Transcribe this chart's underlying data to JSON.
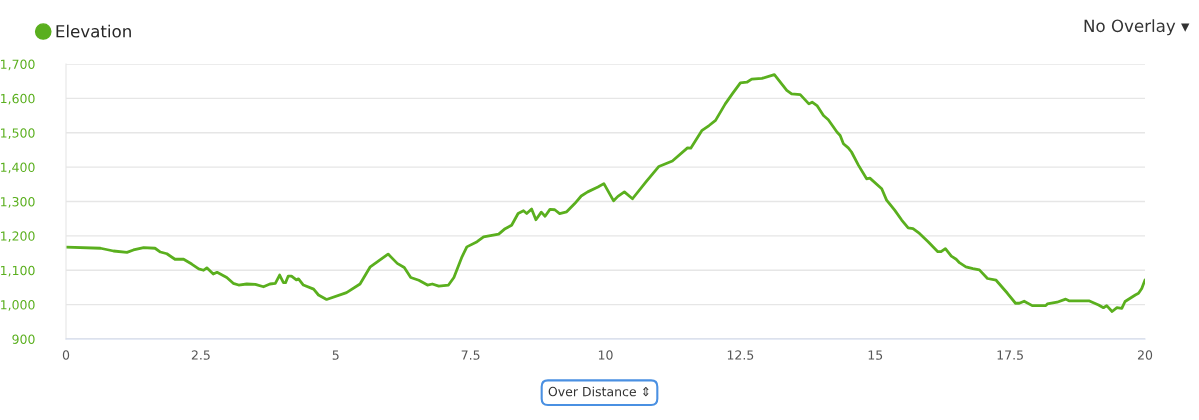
{
  "chart_data": {
    "type": "line",
    "x": [
      0,
      0.64,
      0.88,
      1.13,
      1.25,
      1.44,
      1.65,
      1.75,
      1.87,
      2.02,
      2.18,
      2.33,
      2.46,
      2.55,
      2.61,
      2.73,
      2.8,
      2.98,
      3.1,
      3.2,
      3.35,
      3.51,
      3.66,
      3.78,
      3.88,
      3.96,
      4.03,
      4.07,
      4.12,
      4.18,
      4.27,
      4.31,
      4.4,
      4.59,
      4.68,
      4.83,
      5.2,
      5.45,
      5.64,
      5.97,
      6.14,
      6.27,
      6.39,
      6.54,
      6.7,
      6.79,
      6.91,
      7.09,
      7.19,
      7.34,
      7.43,
      7.62,
      7.74,
      8.02,
      8.14,
      8.26,
      8.38,
      8.48,
      8.54,
      8.63,
      8.71,
      8.81,
      8.88,
      8.97,
      9.06,
      9.15,
      9.28,
      9.43,
      9.55,
      9.67,
      9.86,
      9.97,
      10.15,
      10.23,
      10.35,
      10.5,
      10.75,
      10.99,
      11.24,
      11.52,
      11.58,
      11.79,
      11.92,
      12.04,
      12.22,
      12.35,
      12.5,
      12.62,
      12.71,
      12.9,
      13.13,
      13.36,
      13.45,
      13.61,
      13.77,
      13.83,
      13.92,
      14.04,
      14.13,
      14.29,
      14.35,
      14.41,
      14.5,
      14.56,
      14.69,
      14.84,
      14.9,
      15.12,
      15.21,
      15.36,
      15.49,
      15.61,
      15.7,
      15.82,
      15.98,
      16.16,
      16.22,
      16.3,
      16.41,
      16.5,
      16.56,
      16.68,
      16.81,
      16.93,
      17.08,
      17.24,
      17.45,
      17.6,
      17.67,
      17.76,
      17.91,
      18.16,
      18.19,
      18.37,
      18.53,
      18.59,
      18.96,
      19.14,
      19.23,
      19.29,
      19.39,
      19.48,
      19.57,
      19.63,
      19.82,
      19.88,
      19.94,
      20
    ],
    "series": [
      {
        "name": "Elevation",
        "color": "#5aaf1e",
        "values": [
          1167,
          1164,
          1156,
          1152,
          1159,
          1166,
          1164,
          1153,
          1148,
          1132,
          1132,
          1118,
          1104,
          1100,
          1107,
          1089,
          1094,
          1079,
          1062,
          1057,
          1060,
          1059,
          1052,
          1060,
          1062,
          1086,
          1064,
          1064,
          1083,
          1083,
          1072,
          1075,
          1057,
          1045,
          1028,
          1015,
          1035,
          1060,
          1110,
          1147,
          1120,
          1108,
          1079,
          1071,
          1057,
          1060,
          1054,
          1057,
          1079,
          1139,
          1168,
          1183,
          1197,
          1205,
          1221,
          1231,
          1265,
          1273,
          1265,
          1278,
          1247,
          1269,
          1257,
          1277,
          1276,
          1265,
          1270,
          1294,
          1316,
          1328,
          1342,
          1352,
          1302,
          1315,
          1328,
          1308,
          1357,
          1402,
          1418,
          1456,
          1455,
          1507,
          1521,
          1536,
          1584,
          1613,
          1645,
          1647,
          1656,
          1658,
          1669,
          1623,
          1613,
          1611,
          1584,
          1589,
          1579,
          1550,
          1538,
          1502,
          1492,
          1468,
          1456,
          1444,
          1405,
          1366,
          1368,
          1337,
          1304,
          1275,
          1246,
          1223,
          1221,
          1207,
          1183,
          1154,
          1154,
          1163,
          1141,
          1132,
          1122,
          1110,
          1105,
          1101,
          1076,
          1071,
          1033,
          1004,
          1004,
          1010,
          997,
          997,
          1002,
          1007,
          1016,
          1011,
          1011,
          999,
          991,
          997,
          980,
          991,
          989,
          1009,
          1028,
          1033,
          1047,
          1072
        ]
      }
    ],
    "xlim": [
      0,
      20
    ],
    "xticks": [
      0,
      2.5,
      5,
      7.5,
      10,
      12.5,
      15,
      17.5,
      20
    ],
    "ylim": [
      900,
      1700
    ],
    "yticks": [
      900,
      {
        "value": 1000,
        "label": "1,000"
      },
      {
        "value": 1100,
        "label": "1,100"
      },
      {
        "value": 1200,
        "label": "1,200"
      },
      {
        "value": 1300,
        "label": "1,300"
      },
      {
        "value": 1400,
        "label": "1,400"
      },
      {
        "value": 1500,
        "label": "1,500"
      },
      {
        "value": 1600,
        "label": "1,600"
      },
      {
        "value": 1700,
        "label": "1,700"
      }
    ],
    "grid": "y",
    "legend": "top left",
    "marker": "none",
    "line_style": "solid",
    "annotations": [
      "No Overlay ▾",
      "Over Distance ⇕"
    ]
  }
}
